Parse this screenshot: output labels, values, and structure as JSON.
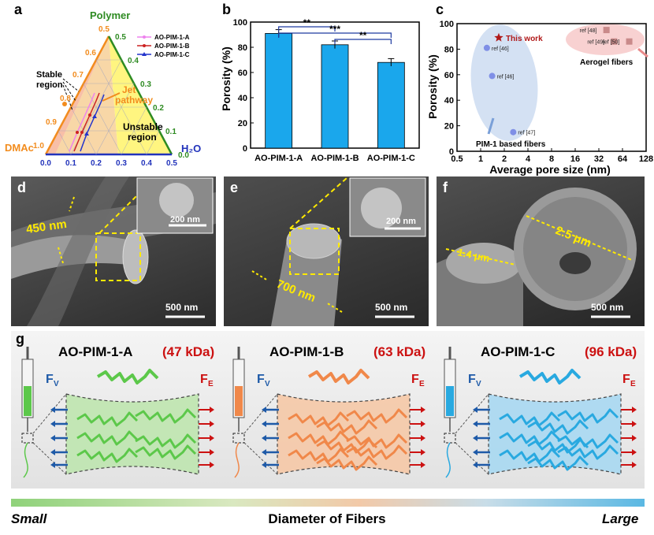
{
  "panels": {
    "a": "a",
    "b": "b",
    "c": "c",
    "d": "d",
    "e": "e",
    "f": "f",
    "g": "g"
  },
  "ternary": {
    "polymer_label": "Polymer",
    "dmac_label": "DMAc",
    "water_label": "H₂O",
    "left_ticks": [
      "0.5",
      "0.6",
      "0.7",
      "0.8",
      "0.9",
      "1.0"
    ],
    "right_ticks": [
      "0.5",
      "0.4",
      "0.3",
      "0.2",
      "0.1",
      "0.0"
    ],
    "bottom_ticks": [
      "0.0",
      "0.1",
      "0.2",
      "0.3",
      "0.4",
      "0.5"
    ],
    "legend": [
      "AO-PIM-1-A",
      "AO-PIM-1-B",
      "AO-PIM-1-C"
    ],
    "legend_colors": [
      "#ee82ee",
      "#cc2222",
      "#2233cc"
    ],
    "stable_label_1": "Stable",
    "stable_label_2": "region",
    "jet_label_1": "Jet",
    "jet_label_2": "pathway",
    "unstable_label_1": "Unstable",
    "unstable_label_2": "region"
  },
  "chart_data": [
    {
      "type": "bar",
      "title": "",
      "categories": [
        "AO-PIM-1-A",
        "AO-PIM-1-B",
        "AO-PIM-1-C"
      ],
      "values": [
        91,
        82,
        68
      ],
      "errors": [
        3,
        3,
        3
      ],
      "ylabel": "Porosity (%)",
      "xlabel": "",
      "ylim": [
        0,
        100
      ],
      "yticks": [
        "0",
        "20",
        "40",
        "60",
        "80",
        "100"
      ],
      "bar_color": "#1aa7ec",
      "significance": [
        "**",
        "***",
        "**"
      ]
    },
    {
      "type": "scatter",
      "xlabel": "Average pore size (nm)",
      "ylabel": "Porosity (%)",
      "xscale": "log2",
      "xlim": [
        0.5,
        128
      ],
      "ylim": [
        0,
        100
      ],
      "xticks": [
        "0.5",
        "1",
        "2",
        "4",
        "8",
        "16",
        "32",
        "64",
        "128"
      ],
      "yticks": [
        "0",
        "20",
        "40",
        "60",
        "80",
        "100"
      ],
      "series": [
        {
          "name": "This work",
          "points": [
            {
              "x": 1.7,
              "y": 89,
              "label": "This work"
            }
          ]
        },
        {
          "name": "PIM-1 based fibers",
          "points": [
            {
              "x": 1.2,
              "y": 81,
              "label": "ref [46]"
            },
            {
              "x": 1.4,
              "y": 59,
              "label": "ref [46]"
            },
            {
              "x": 2.6,
              "y": 15,
              "label": "ref [47]"
            }
          ]
        },
        {
          "name": "Aerogel fibers",
          "points": [
            {
              "x": 40,
              "y": 95,
              "label": "ref [48]"
            },
            {
              "x": 50,
              "y": 86,
              "label": "ref [49]"
            },
            {
              "x": 78,
              "y": 86,
              "label": "ref [50]"
            }
          ]
        }
      ],
      "annotations": [
        "PIM-1 based fibers",
        "Aerogel fibers"
      ]
    }
  ],
  "sem": {
    "d_diameter": "450 nm",
    "d_inset_scale": "200 nm",
    "d_scale": "500 nm",
    "e_diameter": "700 nm",
    "e_inset_scale": "200 nm",
    "e_scale": "500 nm",
    "f_diameter_1": "1.4 μm",
    "f_diameter_2": "2.5 μm",
    "f_scale": "500 nm"
  },
  "schematic": {
    "items": [
      {
        "name": "AO-PIM-1-A",
        "mw": "(47 kDa)",
        "color": "#5cc84a",
        "fill": "#bfe6b0"
      },
      {
        "name": "AO-PIM-1-B",
        "mw": "(63 kDa)",
        "color": "#f0884a",
        "fill": "#f6c9a8"
      },
      {
        "name": "AO-PIM-1-C",
        "mw": "(96 kDa)",
        "color": "#29a9e0",
        "fill": "#a9d9f2"
      }
    ],
    "force_v": "F",
    "force_v_sub": "V",
    "force_e": "F",
    "force_e_sub": "E",
    "mw_color": "#cc1111"
  },
  "bottom": {
    "small": "Small",
    "title": "Diameter of Fibers",
    "large": "Large"
  }
}
